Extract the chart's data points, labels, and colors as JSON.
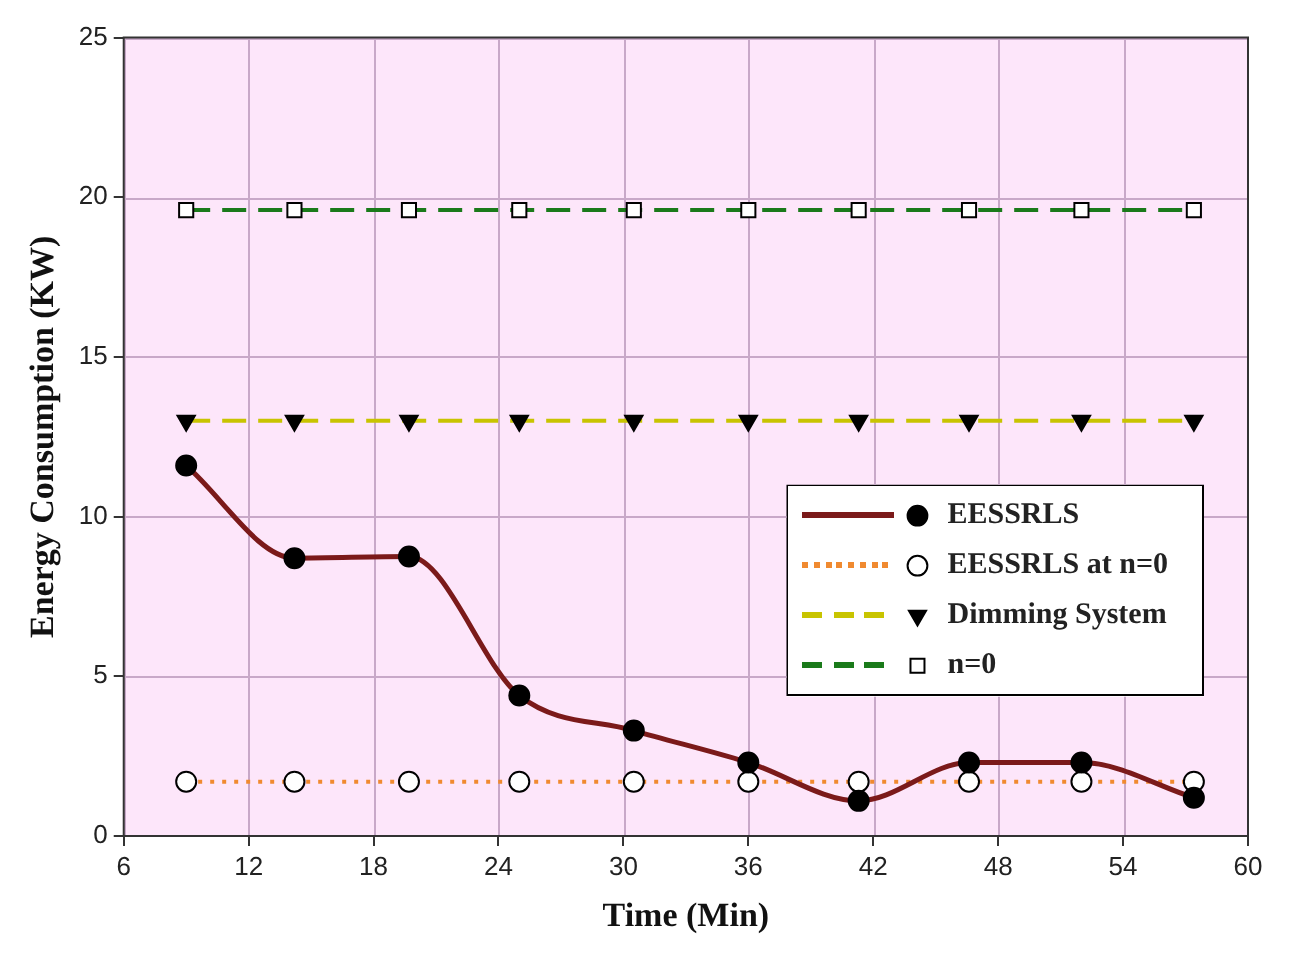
{
  "chart_data": {
    "type": "line",
    "xlabel": "Time (Min)",
    "ylabel": "Energy Consumption (KW)",
    "xlim": [
      6,
      60
    ],
    "xticks": [
      6,
      12,
      18,
      24,
      30,
      36,
      42,
      48,
      54,
      60
    ],
    "ylim": [
      0,
      25
    ],
    "yticks": [
      0,
      5,
      10,
      15,
      20,
      25
    ],
    "grid": true,
    "legend": "right",
    "series": [
      {
        "name": "EESSRLS",
        "color": "#7b1a1a",
        "marker": "circle",
        "line_style": "solid",
        "x": [
          9,
          14.2,
          19.7,
          25,
          30.5,
          36,
          41.3,
          46.6,
          52,
          57.4
        ],
        "values": [
          11.6,
          8.7,
          8.75,
          4.4,
          3.3,
          2.3,
          1.1,
          2.3,
          2.3,
          1.2
        ]
      },
      {
        "name": "EESSRLS at n=0",
        "color": "#f08a30",
        "marker": "circle",
        "line_style": "dotted",
        "x": [
          9,
          14.2,
          19.7,
          25,
          30.5,
          36,
          41.3,
          46.6,
          52,
          57.4
        ],
        "values": [
          1.7,
          1.7,
          1.7,
          1.7,
          1.7,
          1.7,
          1.7,
          1.7,
          1.7,
          1.7
        ]
      },
      {
        "name": "Dimming System",
        "color": "#c8c400",
        "marker": "triangle",
        "line_style": "dashed",
        "x": [
          9,
          14.2,
          19.7,
          25,
          30.5,
          36,
          41.3,
          46.6,
          52,
          57.4
        ],
        "values": [
          13,
          13,
          13,
          13,
          13,
          13,
          13,
          13,
          13,
          13
        ]
      },
      {
        "name": "n=0",
        "color": "#1a7a1a",
        "marker": "square",
        "line_style": "dashed",
        "x": [
          9,
          14.2,
          19.7,
          25,
          30.5,
          36,
          41.3,
          46.6,
          52,
          57.4
        ],
        "values": [
          19.6,
          19.6,
          19.6,
          19.6,
          19.6,
          19.6,
          19.6,
          19.6,
          19.6,
          19.6
        ]
      }
    ]
  }
}
